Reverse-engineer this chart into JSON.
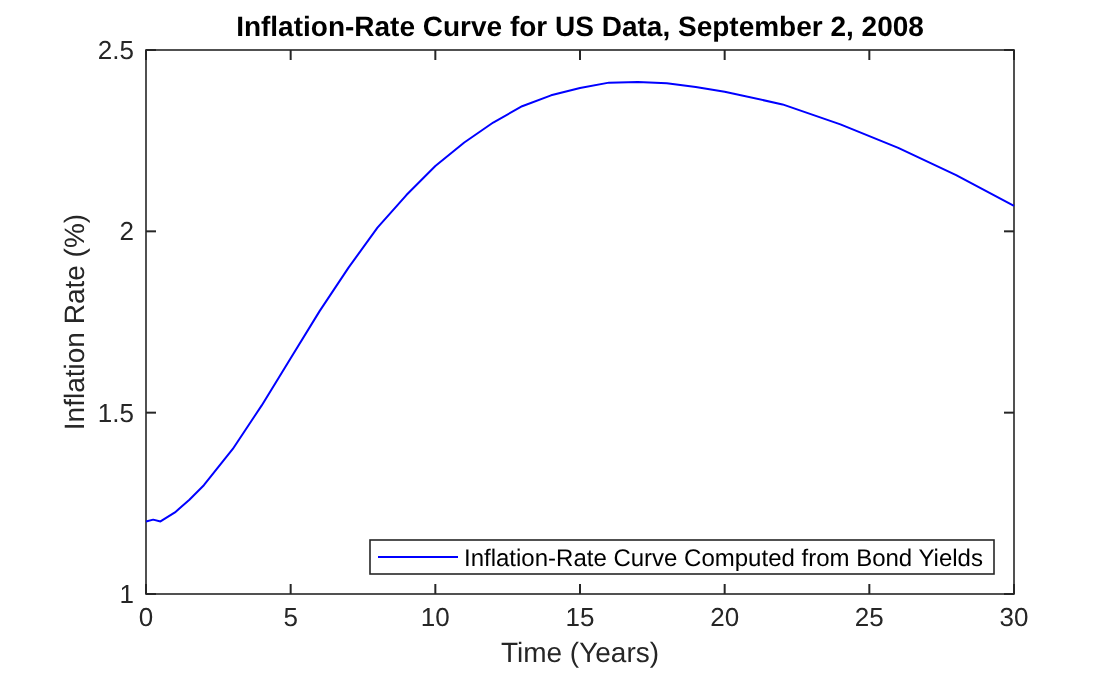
{
  "chart_data": {
    "type": "line",
    "title": "Inflation-Rate Curve for US Data, September 2, 2008",
    "xlabel": "Time (Years)",
    "ylabel": "Inflation Rate (%)",
    "x": [
      0,
      0.25,
      0.5,
      1,
      1.5,
      2,
      3,
      4,
      5,
      6,
      7,
      8,
      9,
      10,
      11,
      12,
      13,
      14,
      15,
      16,
      17,
      18,
      19,
      20,
      22,
      24,
      26,
      28,
      30
    ],
    "series": [
      {
        "name": "Inflation-Rate Curve Computed from Bond Yields",
        "color": "#0000ff",
        "values": [
          1.2,
          1.205,
          1.2,
          1.225,
          1.26,
          1.3,
          1.4,
          1.52,
          1.65,
          1.78,
          1.9,
          2.01,
          2.1,
          2.18,
          2.245,
          2.3,
          2.345,
          2.375,
          2.395,
          2.41,
          2.412,
          2.408,
          2.398,
          2.385,
          2.35,
          2.295,
          2.23,
          2.155,
          2.07
        ]
      }
    ],
    "xlim": [
      0,
      30
    ],
    "xticks": [
      0,
      5,
      10,
      15,
      20,
      25,
      30
    ],
    "ylim": [
      1,
      2.5
    ],
    "yticks": [
      1,
      1.5,
      2,
      2.5
    ],
    "legend": "bottom right",
    "grid": false,
    "marker": "none",
    "line_style": "solid"
  }
}
